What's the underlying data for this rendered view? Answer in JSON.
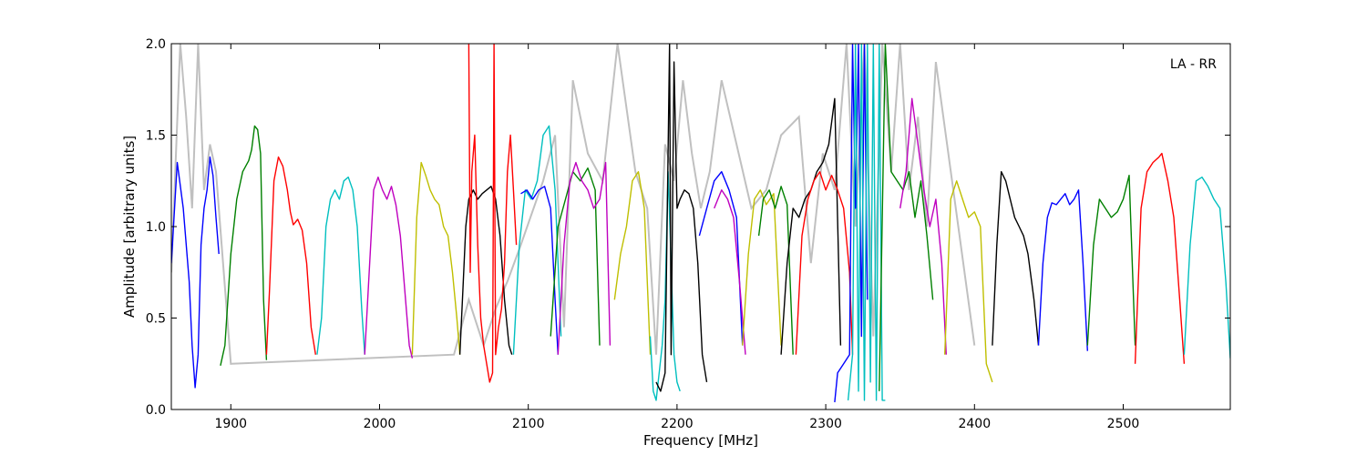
{
  "chart_data": {
    "type": "line",
    "title": "",
    "annotation": "LA - RR",
    "xlabel": "Frequency [MHz]",
    "ylabel": "Amplitude [arbitrary units]",
    "xlim": [
      1860,
      2572
    ],
    "ylim": [
      0,
      2.0
    ],
    "xticks": [
      1900,
      2000,
      2100,
      2200,
      2300,
      2400,
      2500
    ],
    "xtick_labels": [
      "1900",
      "2000",
      "2100",
      "2200",
      "2300",
      "2400",
      "2500"
    ],
    "yticks": [
      0,
      0.5,
      1.0,
      1.5,
      2.0
    ],
    "ytick_labels": [
      "0.0",
      "0.5",
      "1.0",
      "1.5",
      "2.0"
    ],
    "grid": false,
    "legend": "none",
    "background_trace_color": "#c0c0c0",
    "background_trace": {
      "x": [
        1860,
        1866,
        1870,
        1874,
        1878,
        1882,
        1886,
        1890,
        1900,
        2050,
        2060,
        2070,
        2078,
        2086,
        2095,
        2110,
        2118,
        2124,
        2130,
        2140,
        2150,
        2160,
        2172,
        2180,
        2186,
        2192,
        2198,
        2204,
        2210,
        2216,
        2222,
        2230,
        2240,
        2250,
        2260,
        2270,
        2282,
        2290,
        2298,
        2306,
        2314,
        2320,
        2326,
        2332,
        2338,
        2344,
        2350,
        2356,
        2362,
        2368,
        2374,
        2400
      ],
      "y": [
        0.75,
        2.0,
        1.6,
        1.1,
        2.0,
        1.2,
        1.45,
        1.3,
        0.25,
        0.3,
        0.6,
        0.35,
        0.55,
        0.7,
        0.9,
        1.25,
        1.5,
        0.45,
        1.8,
        1.4,
        1.25,
        2.0,
        1.3,
        1.1,
        0.3,
        1.45,
        1.25,
        1.8,
        1.4,
        1.1,
        1.3,
        1.8,
        1.45,
        1.1,
        1.2,
        1.5,
        1.6,
        0.8,
        1.4,
        1.2,
        2.0,
        1.0,
        2.0,
        0.4,
        2.0,
        1.3,
        2.0,
        1.2,
        1.6,
        1.0,
        1.9,
        0.35
      ]
    },
    "series": [
      {
        "color": "#0000ff",
        "x": [
          1860,
          1864,
          1868,
          1872,
          1874,
          1876,
          1878,
          1880,
          1882,
          1884,
          1886,
          1888,
          1890,
          1892
        ],
        "y": [
          0.8,
          1.35,
          1.1,
          0.7,
          0.35,
          0.12,
          0.3,
          0.9,
          1.1,
          1.2,
          1.38,
          1.28,
          1.05,
          0.85
        ]
      },
      {
        "color": "#008000",
        "x": [
          1893,
          1896,
          1900,
          1904,
          1908,
          1912,
          1914,
          1916,
          1918,
          1920,
          1922,
          1924
        ],
        "y": [
          0.24,
          0.35,
          0.85,
          1.15,
          1.3,
          1.36,
          1.42,
          1.55,
          1.53,
          1.4,
          0.6,
          0.27
        ]
      },
      {
        "color": "#ff0000",
        "x": [
          1924,
          1926,
          1929,
          1932,
          1935,
          1938,
          1940,
          1942,
          1945,
          1948,
          1951,
          1954,
          1957
        ],
        "y": [
          0.3,
          0.65,
          1.25,
          1.38,
          1.33,
          1.2,
          1.08,
          1.01,
          1.04,
          0.98,
          0.8,
          0.45,
          0.3
        ]
      },
      {
        "color": "#00bfbf",
        "x": [
          1958,
          1961,
          1964,
          1967,
          1970,
          1973,
          1976,
          1979,
          1982,
          1985,
          1988,
          1990
        ],
        "y": [
          0.3,
          0.5,
          1.0,
          1.15,
          1.2,
          1.15,
          1.25,
          1.27,
          1.2,
          1.0,
          0.55,
          0.3
        ]
      },
      {
        "color": "#bf00bf",
        "x": [
          1990,
          1993,
          1996,
          1999,
          2002,
          2005,
          2008,
          2011,
          2014,
          2017,
          2020,
          2022
        ],
        "y": [
          0.3,
          0.75,
          1.2,
          1.27,
          1.2,
          1.15,
          1.22,
          1.12,
          0.95,
          0.65,
          0.35,
          0.28
        ]
      },
      {
        "color": "#bfbf00",
        "x": [
          2022,
          2025,
          2028,
          2031,
          2034,
          2037,
          2040,
          2043,
          2046,
          2049,
          2052,
          2054
        ],
        "y": [
          0.3,
          1.05,
          1.35,
          1.28,
          1.2,
          1.15,
          1.12,
          1.0,
          0.95,
          0.75,
          0.5,
          0.3
        ]
      },
      {
        "color": "#000000",
        "x": [
          2054,
          2056,
          2058,
          2060,
          2063,
          2066,
          2069,
          2072,
          2075,
          2078,
          2081,
          2084,
          2087,
          2089
        ],
        "y": [
          0.3,
          0.65,
          1.0,
          1.15,
          1.2,
          1.15,
          1.18,
          1.2,
          1.22,
          1.15,
          0.95,
          0.6,
          0.35,
          0.3
        ]
      },
      {
        "color": "#ff0000",
        "x": [
          2060,
          2061,
          2062,
          2064,
          2066,
          2068,
          2070,
          2072,
          2074,
          2076,
          2077,
          2078,
          2080,
          2082,
          2084,
          2086,
          2088,
          2090,
          2092
        ],
        "y": [
          2.0,
          0.75,
          1.3,
          1.5,
          0.9,
          0.5,
          0.35,
          0.25,
          0.15,
          0.2,
          2.0,
          0.3,
          0.45,
          0.55,
          0.8,
          1.3,
          1.5,
          1.2,
          0.9
        ]
      },
      {
        "color": "#00bfbf",
        "x": [
          2090,
          2094,
          2098,
          2102,
          2106,
          2110,
          2114,
          2118,
          2122
        ],
        "y": [
          0.3,
          0.9,
          1.2,
          1.15,
          1.25,
          1.5,
          1.55,
          1.2,
          0.4
        ]
      },
      {
        "color": "#0000ff",
        "x": [
          2095,
          2099,
          2103,
          2107,
          2111,
          2115,
          2118,
          2120
        ],
        "y": [
          1.18,
          1.2,
          1.15,
          1.2,
          1.22,
          1.1,
          0.6,
          0.3
        ]
      },
      {
        "color": "#008000",
        "x": [
          2115,
          2120,
          2125,
          2130,
          2135,
          2140,
          2145,
          2148
        ],
        "y": [
          0.4,
          1.0,
          1.15,
          1.3,
          1.25,
          1.32,
          1.2,
          0.35
        ]
      },
      {
        "color": "#bf00bf",
        "x": [
          2120,
          2124,
          2128,
          2132,
          2136,
          2140,
          2144,
          2148,
          2152,
          2155
        ],
        "y": [
          0.3,
          0.9,
          1.25,
          1.35,
          1.25,
          1.2,
          1.1,
          1.15,
          1.35,
          0.35
        ]
      },
      {
        "color": "#bfbf00",
        "x": [
          2158,
          2162,
          2166,
          2170,
          2174,
          2178,
          2182
        ],
        "y": [
          0.6,
          0.85,
          1.0,
          1.25,
          1.3,
          1.1,
          0.3
        ]
      },
      {
        "color": "#00bfbf",
        "x": [
          2182,
          2184,
          2186,
          2188,
          2190,
          2192,
          2194,
          2196,
          2198,
          2200,
          2202
        ],
        "y": [
          0.4,
          0.1,
          0.05,
          0.2,
          0.35,
          0.6,
          1.3,
          0.8,
          0.3,
          0.15,
          0.1
        ]
      },
      {
        "color": "#000000",
        "x": [
          2186,
          2189,
          2192,
          2195,
          2196,
          2198,
          2200,
          2202,
          2205,
          2208,
          2211,
          2214,
          2217,
          2220
        ],
        "y": [
          0.15,
          0.1,
          0.2,
          2.0,
          0.3,
          1.9,
          1.1,
          1.15,
          1.2,
          1.18,
          1.1,
          0.8,
          0.3,
          0.15
        ]
      },
      {
        "color": "#0000ff",
        "x": [
          2215,
          2220,
          2225,
          2230,
          2235,
          2240,
          2244
        ],
        "y": [
          0.95,
          1.1,
          1.25,
          1.3,
          1.2,
          1.05,
          0.35
        ]
      },
      {
        "color": "#bf00bf",
        "x": [
          2225,
          2230,
          2234,
          2238,
          2242,
          2246
        ],
        "y": [
          1.1,
          1.2,
          1.15,
          1.05,
          0.7,
          0.3
        ]
      },
      {
        "color": "#bfbf00",
        "x": [
          2244,
          2248,
          2252,
          2256,
          2260,
          2265,
          2270
        ],
        "y": [
          0.35,
          0.85,
          1.15,
          1.2,
          1.12,
          1.18,
          0.35
        ]
      },
      {
        "color": "#008000",
        "x": [
          2255,
          2258,
          2262,
          2266,
          2270,
          2274,
          2278
        ],
        "y": [
          0.95,
          1.15,
          1.2,
          1.1,
          1.22,
          1.12,
          0.3
        ]
      },
      {
        "color": "#000000",
        "x": [
          2270,
          2274,
          2278,
          2282,
          2286,
          2290,
          2294,
          2298,
          2302,
          2306,
          2310
        ],
        "y": [
          0.3,
          0.8,
          1.1,
          1.05,
          1.15,
          1.2,
          1.3,
          1.35,
          1.45,
          1.7,
          0.35
        ]
      },
      {
        "color": "#ff0000",
        "x": [
          2280,
          2284,
          2288,
          2292,
          2296,
          2300,
          2304,
          2308,
          2312,
          2316,
          2318
        ],
        "y": [
          0.3,
          0.95,
          1.15,
          1.25,
          1.3,
          1.2,
          1.28,
          1.2,
          1.1,
          0.75,
          0.3
        ]
      },
      {
        "color": "#0000ff",
        "x": [
          2306,
          2308,
          2312,
          2316,
          2318,
          2320,
          2322,
          2324,
          2326,
          2328
        ],
        "y": [
          0.04,
          0.2,
          0.25,
          0.3,
          2.0,
          1.1,
          2.0,
          0.4,
          2.0,
          0.6
        ]
      },
      {
        "color": "#00bfbf",
        "x": [
          2315,
          2318,
          2320,
          2322,
          2324,
          2326,
          2328,
          2330,
          2332,
          2334,
          2336,
          2338,
          2340
        ],
        "y": [
          0.05,
          0.3,
          2.0,
          0.1,
          2.0,
          0.05,
          2.0,
          0.15,
          2.0,
          0.05,
          2.0,
          0.05,
          0.05
        ]
      },
      {
        "color": "#008000",
        "x": [
          2336,
          2340,
          2344,
          2348,
          2352,
          2356,
          2360,
          2364,
          2368,
          2372
        ],
        "y": [
          0.1,
          2.0,
          1.3,
          1.25,
          1.2,
          1.3,
          1.05,
          1.25,
          0.95,
          0.6
        ]
      },
      {
        "color": "#bf00bf",
        "x": [
          2350,
          2354,
          2358,
          2362,
          2366,
          2370,
          2374,
          2378,
          2381
        ],
        "y": [
          1.1,
          1.3,
          1.7,
          1.45,
          1.2,
          1.0,
          1.15,
          0.8,
          0.3
        ]
      },
      {
        "color": "#bfbf00",
        "x": [
          2380,
          2384,
          2388,
          2392,
          2396,
          2400,
          2404,
          2408,
          2412
        ],
        "y": [
          0.3,
          1.15,
          1.25,
          1.15,
          1.05,
          1.08,
          1.0,
          0.25,
          0.15
        ]
      },
      {
        "color": "#000000",
        "x": [
          2412,
          2415,
          2418,
          2421,
          2424,
          2427,
          2430,
          2433,
          2436,
          2440,
          2443
        ],
        "y": [
          0.35,
          0.9,
          1.3,
          1.25,
          1.15,
          1.05,
          1.0,
          0.95,
          0.85,
          0.6,
          0.35
        ]
      },
      {
        "color": "#0000ff",
        "x": [
          2443,
          2446,
          2449,
          2452,
          2455,
          2458,
          2461,
          2464,
          2467,
          2470,
          2473,
          2476
        ],
        "y": [
          0.35,
          0.8,
          1.05,
          1.13,
          1.12,
          1.15,
          1.18,
          1.12,
          1.15,
          1.2,
          0.8,
          0.32
        ]
      },
      {
        "color": "#008000",
        "x": [
          2476,
          2480,
          2484,
          2488,
          2492,
          2496,
          2500,
          2504,
          2508
        ],
        "y": [
          0.35,
          0.9,
          1.15,
          1.1,
          1.05,
          1.08,
          1.15,
          1.28,
          0.35
        ]
      },
      {
        "color": "#ff0000",
        "x": [
          2508,
          2512,
          2516,
          2520,
          2524,
          2526,
          2530,
          2534,
          2538,
          2541
        ],
        "y": [
          0.25,
          1.1,
          1.3,
          1.35,
          1.38,
          1.4,
          1.25,
          1.05,
          0.6,
          0.25
        ]
      },
      {
        "color": "#00bfbf",
        "x": [
          2541,
          2545,
          2549,
          2553,
          2557,
          2561,
          2565,
          2569,
          2572
        ],
        "y": [
          0.3,
          0.9,
          1.25,
          1.27,
          1.22,
          1.15,
          1.1,
          0.7,
          0.28
        ]
      }
    ]
  }
}
